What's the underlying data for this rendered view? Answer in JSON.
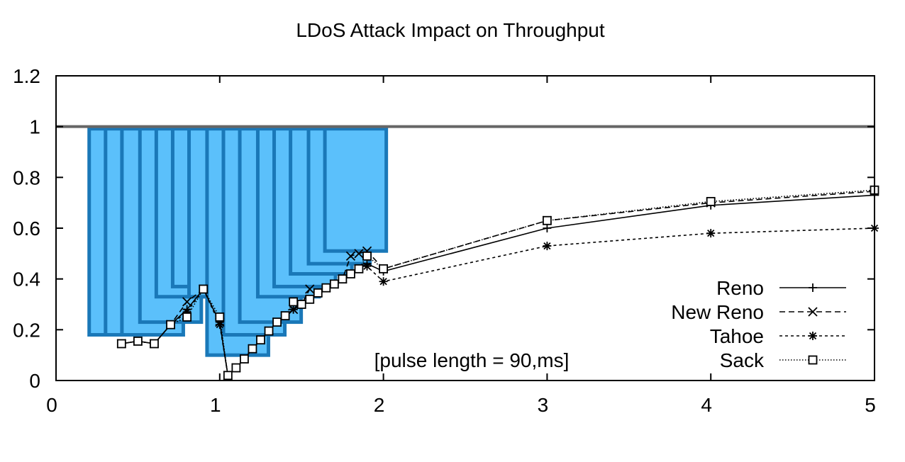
{
  "chart_data": {
    "type": "line",
    "title": "LDoS Attack Impact on Throughput",
    "xlabel": "",
    "ylabel": "",
    "xlim": [
      0,
      5
    ],
    "ylim": [
      0,
      1.2
    ],
    "xticks": [
      "0",
      "1",
      "2",
      "3",
      "4",
      "5"
    ],
    "yticks": [
      "0",
      "0.2",
      "0.4",
      "0.6",
      "0.8",
      "1",
      "1.2"
    ],
    "grid": false,
    "legend_position": "bottom-right",
    "annotation": "[pulse length = 90,ms]",
    "reference_line": {
      "y": 1,
      "color": "#666666"
    },
    "bars": {
      "top": 1,
      "x": [
        0.39,
        0.49,
        0.59,
        0.7,
        0.8,
        0.9,
        1.0,
        1.11,
        1.21,
        1.31,
        1.42,
        1.52,
        1.62,
        1.73,
        1.83
      ],
      "bottom": [
        0.18,
        0.18,
        0.18,
        0.23,
        0.33,
        0.37,
        0.33,
        0.1,
        0.18,
        0.23,
        0.33,
        0.37,
        0.42,
        0.46,
        0.51
      ],
      "fill": "#5bc0fb",
      "stroke": "#1a78b8"
    },
    "x": [
      0.4,
      0.5,
      0.6,
      0.7,
      0.8,
      0.9,
      1.0,
      1.05,
      1.1,
      1.15,
      1.2,
      1.25,
      1.3,
      1.35,
      1.4,
      1.45,
      1.5,
      1.55,
      1.6,
      1.65,
      1.7,
      1.75,
      1.8,
      1.85,
      1.9,
      2,
      3,
      4,
      5
    ],
    "series": [
      {
        "name": "Reno",
        "marker": "plus",
        "dash": "solid",
        "values": [
          0.145,
          0.155,
          0.145,
          0.22,
          0.28,
          0.36,
          0.23,
          0.02,
          0.05,
          0.085,
          0.125,
          0.16,
          0.195,
          0.23,
          0.255,
          0.28,
          0.3,
          0.32,
          0.345,
          0.365,
          0.38,
          0.4,
          0.42,
          0.44,
          0.46,
          0.43,
          0.6,
          0.69,
          0.73
        ]
      },
      {
        "name": "New Reno",
        "marker": "x",
        "dash": "dashed",
        "values": [
          0.145,
          0.155,
          0.145,
          0.22,
          0.31,
          0.36,
          0.23,
          0.02,
          0.05,
          0.085,
          0.125,
          0.16,
          0.195,
          0.23,
          0.255,
          0.28,
          0.3,
          0.36,
          0.345,
          0.365,
          0.38,
          0.4,
          0.49,
          0.5,
          0.51,
          0.44,
          0.63,
          0.7,
          0.745
        ]
      },
      {
        "name": "Tahoe",
        "marker": "asterisk",
        "dash": "short-dashed",
        "values": [
          0.145,
          0.155,
          0.145,
          0.22,
          0.27,
          0.36,
          0.22,
          0.02,
          0.05,
          0.085,
          0.125,
          0.16,
          0.195,
          0.23,
          0.255,
          0.28,
          0.3,
          0.32,
          0.345,
          0.365,
          0.38,
          0.4,
          0.42,
          0.44,
          0.45,
          0.39,
          0.53,
          0.58,
          0.6
        ]
      },
      {
        "name": "Sack",
        "marker": "square",
        "dash": "dotted",
        "values": [
          0.145,
          0.155,
          0.145,
          0.22,
          0.25,
          0.36,
          0.25,
          0.02,
          0.05,
          0.085,
          0.125,
          0.16,
          0.195,
          0.23,
          0.255,
          0.31,
          0.3,
          0.32,
          0.345,
          0.365,
          0.38,
          0.4,
          0.42,
          0.44,
          0.49,
          0.44,
          0.63,
          0.705,
          0.75
        ]
      }
    ]
  }
}
